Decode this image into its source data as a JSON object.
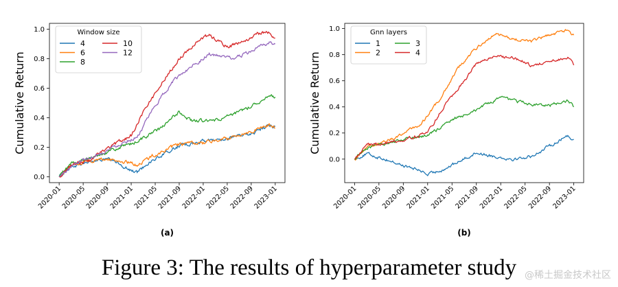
{
  "caption": "Figure 3: The results of hyperparameter study",
  "watermark": "@稀土掘金技术社区",
  "colors": {
    "c1": "#1f77b4",
    "c2": "#ff7f0e",
    "c3": "#2ca02c",
    "c4": "#d62728",
    "c5": "#9467bd"
  },
  "chart_data": [
    {
      "type": "line",
      "panel_label": "(a)",
      "ylabel": "Cumulative Return",
      "xlabel": "",
      "x_ticks": [
        "2020-01",
        "2020-05",
        "2020-09",
        "2021-01",
        "2021-05",
        "2021-09",
        "2022-01",
        "2022-05",
        "2022-09",
        "2023-01"
      ],
      "xlim": [
        "2020-01",
        "2023-01"
      ],
      "ylim": [
        -0.04,
        1.04
      ],
      "y_ticks": [
        0.0,
        0.2,
        0.4,
        0.6,
        0.8,
        1.0
      ],
      "grid": false,
      "legend": {
        "title": "Window size",
        "position": "top-left",
        "ncol": 2
      },
      "series": [
        {
          "name": "4",
          "color": "#1f77b4",
          "points": [
            [
              "2020-01",
              0.0
            ],
            [
              "2020-03",
              0.07
            ],
            [
              "2020-06",
              0.1
            ],
            [
              "2020-09",
              0.12
            ],
            [
              "2020-11",
              0.09
            ],
            [
              "2021-01",
              0.04
            ],
            [
              "2021-02",
              0.03
            ],
            [
              "2021-04",
              0.1
            ],
            [
              "2021-06",
              0.14
            ],
            [
              "2021-09",
              0.21
            ],
            [
              "2022-01",
              0.24
            ],
            [
              "2022-05",
              0.26
            ],
            [
              "2022-09",
              0.29
            ],
            [
              "2022-12",
              0.35
            ],
            [
              "2023-01",
              0.34
            ]
          ]
        },
        {
          "name": "6",
          "color": "#ff7f0e",
          "points": [
            [
              "2020-01",
              0.0
            ],
            [
              "2020-03",
              0.08
            ],
            [
              "2020-06",
              0.11
            ],
            [
              "2020-09",
              0.12
            ],
            [
              "2020-12",
              0.1
            ],
            [
              "2021-02",
              0.08
            ],
            [
              "2021-05",
              0.15
            ],
            [
              "2021-09",
              0.22
            ],
            [
              "2022-01",
              0.23
            ],
            [
              "2022-05",
              0.26
            ],
            [
              "2022-09",
              0.31
            ],
            [
              "2022-12",
              0.35
            ],
            [
              "2023-01",
              0.33
            ]
          ]
        },
        {
          "name": "8",
          "color": "#2ca02c",
          "points": [
            [
              "2020-01",
              0.0
            ],
            [
              "2020-03",
              0.09
            ],
            [
              "2020-06",
              0.12
            ],
            [
              "2020-09",
              0.17
            ],
            [
              "2021-01",
              0.22
            ],
            [
              "2021-06",
              0.33
            ],
            [
              "2021-09",
              0.44
            ],
            [
              "2021-11",
              0.38
            ],
            [
              "2022-03",
              0.38
            ],
            [
              "2022-06",
              0.42
            ],
            [
              "2022-09",
              0.48
            ],
            [
              "2022-12",
              0.55
            ],
            [
              "2023-01",
              0.54
            ]
          ]
        },
        {
          "name": "10",
          "color": "#d62728",
          "points": [
            [
              "2020-01",
              0.0
            ],
            [
              "2020-03",
              0.08
            ],
            [
              "2020-06",
              0.11
            ],
            [
              "2020-09",
              0.19
            ],
            [
              "2021-01",
              0.28
            ],
            [
              "2021-03",
              0.44
            ],
            [
              "2021-06",
              0.63
            ],
            [
              "2021-09",
              0.8
            ],
            [
              "2021-12",
              0.92
            ],
            [
              "2022-02",
              0.96
            ],
            [
              "2022-05",
              0.88
            ],
            [
              "2022-08",
              0.92
            ],
            [
              "2022-10",
              0.97
            ],
            [
              "2022-12",
              0.98
            ],
            [
              "2023-01",
              0.94
            ]
          ]
        },
        {
          "name": "12",
          "color": "#9467bd",
          "points": [
            [
              "2020-01",
              0.0
            ],
            [
              "2020-04",
              0.1
            ],
            [
              "2020-08",
              0.16
            ],
            [
              "2020-12",
              0.24
            ],
            [
              "2021-02",
              0.27
            ],
            [
              "2021-05",
              0.48
            ],
            [
              "2021-08",
              0.65
            ],
            [
              "2021-11",
              0.75
            ],
            [
              "2022-02",
              0.83
            ],
            [
              "2022-06",
              0.8
            ],
            [
              "2022-09",
              0.85
            ],
            [
              "2022-12",
              0.91
            ],
            [
              "2023-01",
              0.9
            ]
          ]
        }
      ]
    },
    {
      "type": "line",
      "panel_label": "(b)",
      "ylabel": "Cumulative Return",
      "xlabel": "",
      "x_ticks": [
        "2020-01",
        "2020-05",
        "2020-09",
        "2021-01",
        "2021-05",
        "2021-09",
        "2022-01",
        "2022-05",
        "2022-09",
        "2023-01"
      ],
      "xlim": [
        "2020-01",
        "2023-01"
      ],
      "ylim": [
        -0.18,
        1.04
      ],
      "y_ticks": [
        0.0,
        0.2,
        0.4,
        0.6,
        0.8,
        1.0
      ],
      "grid": false,
      "legend": {
        "title": "Gnn layers",
        "position": "top-left",
        "ncol": 2
      },
      "series": [
        {
          "name": "1",
          "color": "#1f77b4",
          "points": [
            [
              "2020-01",
              0.0
            ],
            [
              "2020-03",
              0.04
            ],
            [
              "2020-06",
              0.0
            ],
            [
              "2020-09",
              -0.05
            ],
            [
              "2020-12",
              -0.09
            ],
            [
              "2021-01",
              -0.12
            ],
            [
              "2021-04",
              -0.07
            ],
            [
              "2021-09",
              0.05
            ],
            [
              "2021-12",
              0.02
            ],
            [
              "2022-03",
              0.0
            ],
            [
              "2022-06",
              0.02
            ],
            [
              "2022-09",
              0.1
            ],
            [
              "2022-12",
              0.18
            ],
            [
              "2023-01",
              0.15
            ]
          ]
        },
        {
          "name": "2",
          "color": "#ff7f0e",
          "points": [
            [
              "2020-01",
              0.0
            ],
            [
              "2020-03",
              0.1
            ],
            [
              "2020-06",
              0.13
            ],
            [
              "2020-09",
              0.2
            ],
            [
              "2020-12",
              0.27
            ],
            [
              "2021-03",
              0.46
            ],
            [
              "2021-06",
              0.7
            ],
            [
              "2021-09",
              0.85
            ],
            [
              "2021-12",
              0.96
            ],
            [
              "2022-03",
              0.92
            ],
            [
              "2022-06",
              0.9
            ],
            [
              "2022-09",
              0.95
            ],
            [
              "2022-12",
              0.99
            ],
            [
              "2023-01",
              0.95
            ]
          ]
        },
        {
          "name": "3",
          "color": "#2ca02c",
          "points": [
            [
              "2020-01",
              0.0
            ],
            [
              "2020-03",
              0.09
            ],
            [
              "2020-06",
              0.12
            ],
            [
              "2020-09",
              0.15
            ],
            [
              "2021-01",
              0.18
            ],
            [
              "2021-05",
              0.3
            ],
            [
              "2021-09",
              0.38
            ],
            [
              "2022-01",
              0.47
            ],
            [
              "2022-03",
              0.45
            ],
            [
              "2022-06",
              0.42
            ],
            [
              "2022-09",
              0.41
            ],
            [
              "2022-12",
              0.45
            ],
            [
              "2023-01",
              0.4
            ]
          ]
        },
        {
          "name": "4",
          "color": "#d62728",
          "points": [
            [
              "2020-01",
              0.0
            ],
            [
              "2020-03",
              0.11
            ],
            [
              "2020-06",
              0.12
            ],
            [
              "2020-09",
              0.15
            ],
            [
              "2021-01",
              0.2
            ],
            [
              "2021-04",
              0.43
            ],
            [
              "2021-07",
              0.6
            ],
            [
              "2021-09",
              0.73
            ],
            [
              "2021-12",
              0.79
            ],
            [
              "2022-03",
              0.78
            ],
            [
              "2022-06",
              0.72
            ],
            [
              "2022-09",
              0.74
            ],
            [
              "2022-12",
              0.78
            ],
            [
              "2023-01",
              0.72
            ]
          ]
        }
      ]
    }
  ]
}
